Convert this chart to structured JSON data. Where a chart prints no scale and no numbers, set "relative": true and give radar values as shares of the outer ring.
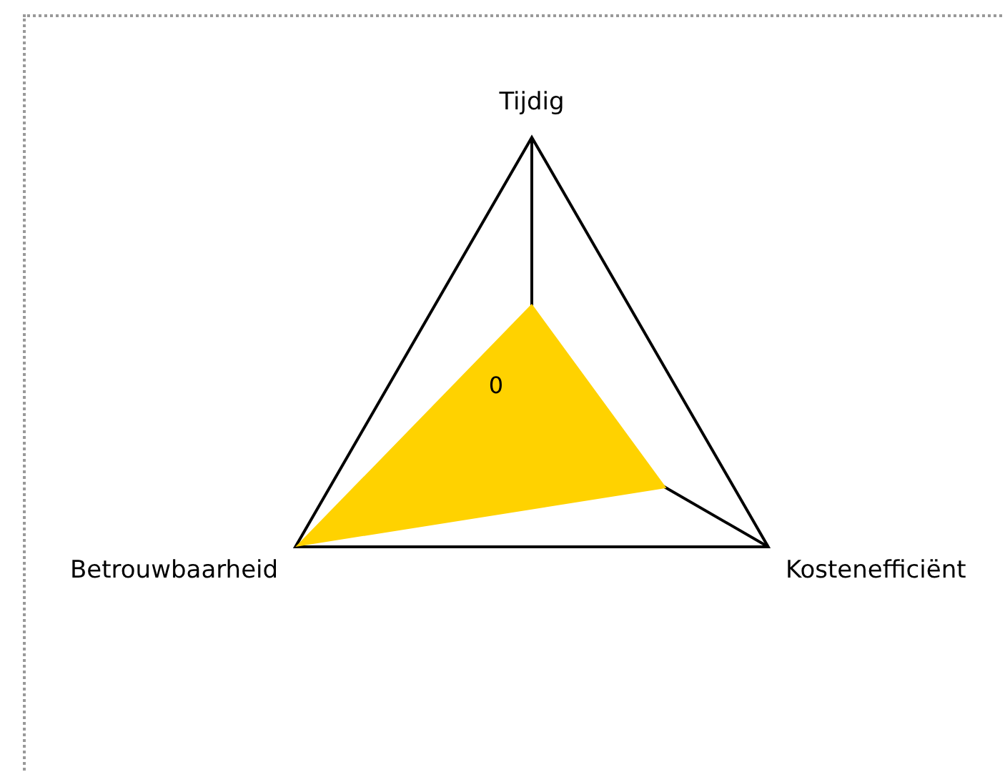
{
  "chart_data": {
    "type": "radar",
    "relative": true,
    "categories": [
      "Tijdig",
      "Kostenefficiënt",
      "Betrouwbaarheid"
    ],
    "series": [
      {
        "color": "#ffd200",
        "values": [
          0.39,
          0.57,
          1
        ]
      }
    ],
    "annotations": [
      "0"
    ],
    "legend": false,
    "marker": "none"
  }
}
